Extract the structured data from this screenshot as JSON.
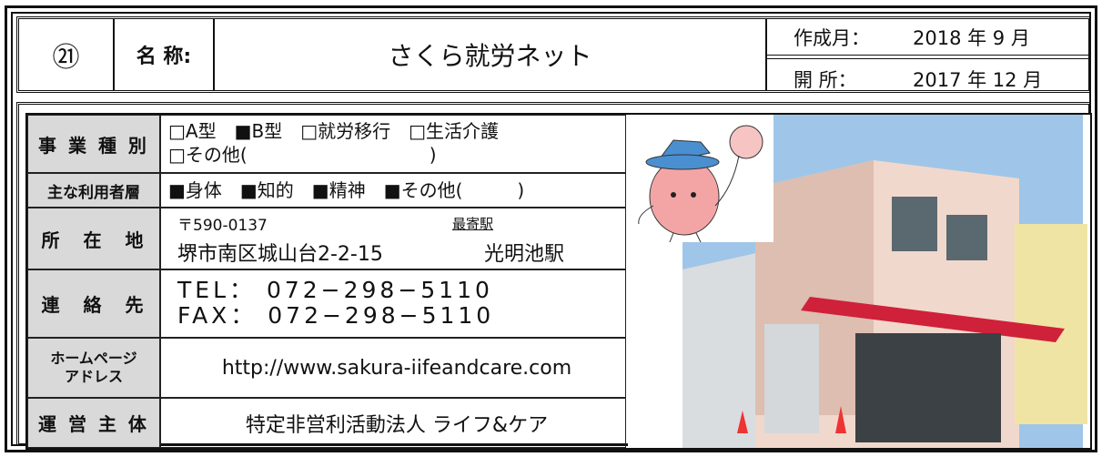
{
  "header": {
    "number": "㉑",
    "name_label": "名 称:",
    "name": "さくら就労ネット",
    "created_label": "作成月：",
    "created": "2018 年 9 月",
    "opened_label": "開 所：",
    "opened": "2017 年 12 月"
  },
  "table": {
    "rows": [
      {
        "label": "事 業 種 別",
        "lines": [
          "□A型　■B型　□就労移行　□生活介護",
          "□その他(　　　　　　　　　　)"
        ]
      },
      {
        "label": "主な利用者層",
        "lines": [
          "■身体　■知的　■精神　■その他(　　　)"
        ]
      },
      {
        "label": "所　在　地",
        "postal": "〒590-0137",
        "station_label": "最寄駅",
        "address": "堺市南区城山台2-2-15",
        "station": "光明池駅"
      },
      {
        "label": "連　絡　先",
        "lines": [
          "TEL： 072−298−5110",
          "FAX： 072−298−5110"
        ]
      },
      {
        "label_lines": [
          "ホームページ",
          "アドレス"
        ],
        "lines": [
          "http://www.sakura-iifeandcare.com"
        ]
      },
      {
        "label": "運 営 主 体",
        "lines": [
          "特定非営利活動法人 ライフ&ケア"
        ]
      }
    ]
  }
}
